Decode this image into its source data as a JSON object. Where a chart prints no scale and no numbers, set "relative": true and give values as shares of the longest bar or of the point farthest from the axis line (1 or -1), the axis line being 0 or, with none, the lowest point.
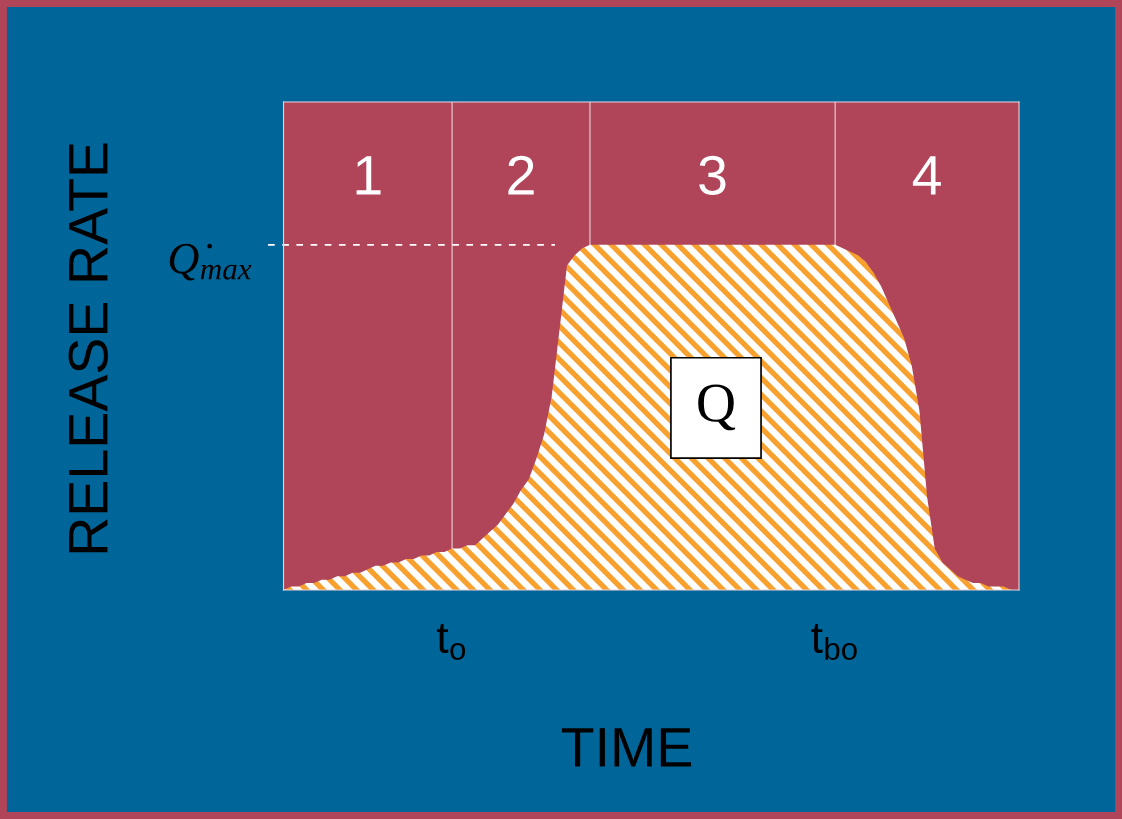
{
  "chart_data": {
    "type": "area",
    "xlabel": "TIME",
    "ylabel": "RELEASE RATE",
    "relative": true,
    "color": "#f9a12f",
    "grid": "x",
    "categories": [
      null,
      null,
      null,
      null,
      null,
      null,
      null,
      null,
      null,
      null,
      null,
      null,
      null,
      null,
      null,
      null,
      null,
      null,
      null,
      null,
      null,
      null,
      "t$_{o}$",
      null,
      null,
      null,
      null,
      null,
      null,
      null,
      null,
      null,
      null,
      null,
      null,
      null,
      null,
      null,
      null,
      null,
      null,
      null,
      null,
      null,
      null,
      null,
      null,
      null,
      null,
      null,
      null,
      null,
      null,
      null,
      null,
      null,
      null,
      null,
      null,
      null,
      null,
      null,
      null,
      null,
      null,
      null,
      null,
      null,
      null,
      null,
      null,
      null,
      "t$_{bo}$",
      null,
      null,
      null,
      null,
      null,
      null,
      null,
      null,
      null,
      null,
      null,
      null,
      null,
      null,
      null,
      null,
      null,
      null,
      null,
      null,
      null,
      null,
      null,
      null
    ],
    "values": [
      0,
      0.01,
      0.01,
      0.02,
      0.02,
      0.03,
      0.03,
      0.04,
      0.04,
      0.05,
      0.05,
      0.06,
      0.07,
      0.07,
      0.08,
      0.08,
      0.09,
      0.09,
      0.1,
      0.1,
      0.11,
      0.11,
      0.12,
      0.12,
      0.13,
      0.13,
      0.15,
      0.17,
      0.19,
      0.22,
      0.25,
      0.29,
      0.32,
      0.38,
      0.45,
      0.56,
      0.75,
      0.94,
      0.97,
      0.99,
      1,
      1,
      1,
      1,
      1,
      1,
      1,
      1,
      1,
      1,
      1,
      1,
      1,
      1,
      1,
      1,
      1,
      1,
      1,
      1,
      1,
      1,
      1,
      1,
      1,
      1,
      1,
      1,
      1,
      1,
      1,
      1,
      1,
      0.99,
      0.98,
      0.97,
      0.95,
      0.92,
      0.88,
      0.83,
      0.78,
      0.73,
      0.65,
      0.52,
      0.27,
      0.12,
      0.08,
      0.06,
      0.04,
      0.03,
      0.02,
      0.02,
      0.01,
      0.01,
      0.01,
      0,
      0
    ],
    "ref_lines": [
      {
        "axis": "y",
        "value": 1,
        "label": "Q̇$_{max}$",
        "color": "#ffffff",
        "line_style": "dashed"
      }
    ],
    "annotations": [
      "1",
      "2",
      "3",
      "4",
      "Q"
    ]
  }
}
